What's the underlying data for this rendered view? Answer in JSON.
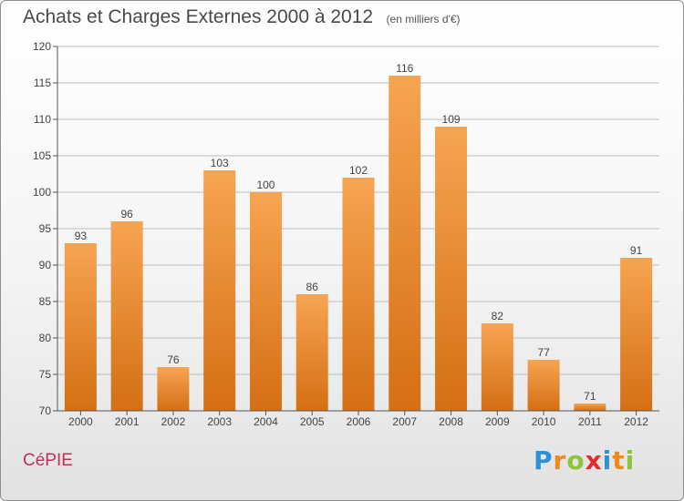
{
  "header": {
    "title": "Achats et Charges Externes 2000 à 2012",
    "subtitle": "(en milliers d'€)"
  },
  "footer": {
    "commune": "CéPIE",
    "logo_letters": [
      "P",
      "r",
      "o",
      "x",
      "i",
      "t",
      "i"
    ],
    "logo_colors": [
      "#2f8fd8",
      "#f08a1c",
      "#8cc43c",
      "#e0302c",
      "#2f8fd8",
      "#f08a1c",
      "#8cc43c"
    ]
  },
  "colors": {
    "bar_top": "#f7a452",
    "bar_bottom": "#d46f14",
    "grid": "#bdbdbd",
    "axis": "#555555",
    "text": "#444444"
  },
  "chart_data": {
    "type": "bar",
    "title": "Achats et Charges Externes 2000 à 2012",
    "categories": [
      "2000",
      "2001",
      "2002",
      "2003",
      "2004",
      "2005",
      "2006",
      "2007",
      "2008",
      "2009",
      "2010",
      "2011",
      "2012"
    ],
    "values": [
      93,
      96,
      76,
      103,
      100,
      86,
      102,
      116,
      109,
      82,
      77,
      71,
      91
    ],
    "ylim": [
      70,
      120
    ],
    "yticks": [
      70,
      75,
      80,
      85,
      90,
      95,
      100,
      105,
      110,
      115,
      120
    ],
    "grid": true,
    "legend": "none"
  }
}
